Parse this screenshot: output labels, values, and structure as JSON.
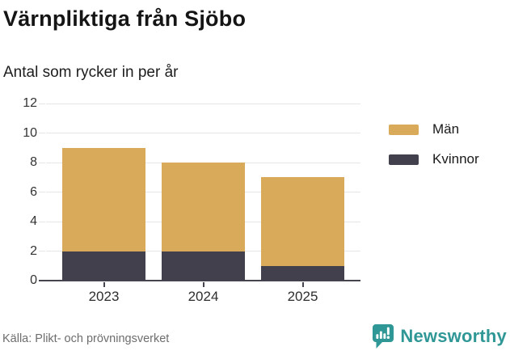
{
  "header": {
    "title": "Värnpliktiga från Sjöbo",
    "subtitle": "Antal som rycker in per år"
  },
  "footer": {
    "source": "Källa: Plikt- och prövningsverket",
    "brand": "Newsworthy"
  },
  "colors": {
    "men": "#d9aa59",
    "women": "#42404d",
    "grid": "#e6e6e6",
    "axis": "#47444f",
    "brand_teal": "#2f9795"
  },
  "legend": [
    {
      "label": "Män",
      "color": "#d9aa59"
    },
    {
      "label": "Kvinnor",
      "color": "#42404d"
    }
  ],
  "chart_data": {
    "type": "bar",
    "stacked": true,
    "title": "Värnpliktiga från Sjöbo",
    "subtitle": "Antal som rycker in per år",
    "categories": [
      "2023",
      "2024",
      "2025"
    ],
    "series": [
      {
        "name": "Kvinnor",
        "color": "#42404d",
        "values": [
          2,
          2,
          1
        ]
      },
      {
        "name": "Män",
        "color": "#d9aa59",
        "values": [
          7,
          6,
          6
        ]
      }
    ],
    "totals": [
      9,
      8,
      7
    ],
    "xlabel": "",
    "ylabel": "",
    "ylim": [
      0,
      12
    ],
    "yticks": [
      0,
      2,
      4,
      6,
      8,
      10,
      12
    ],
    "grid": true,
    "legend_position": "right",
    "stack_order_bottom_to_top": [
      "Kvinnor",
      "Män"
    ]
  }
}
